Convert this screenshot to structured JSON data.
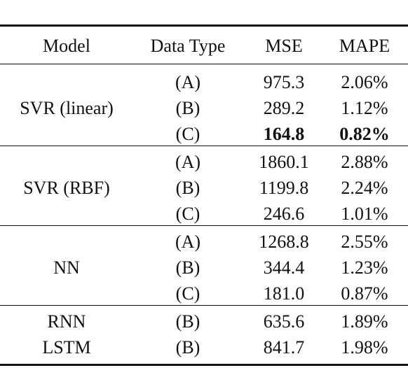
{
  "table": {
    "header": [
      "Model",
      "Data Type",
      "MSE",
      "MAPE"
    ],
    "groups": [
      {
        "model": "SVR (linear)",
        "rows": [
          [
            "(A)",
            "975.3",
            "2.06%"
          ],
          [
            "(B)",
            "289.2",
            "1.12%"
          ],
          [
            "(C)",
            "164.8",
            "0.82%"
          ]
        ]
      },
      {
        "model": "SVR (RBF)",
        "rows": [
          [
            "(A)",
            "1860.1",
            "2.88%"
          ],
          [
            "(B)",
            "1199.8",
            "2.24%"
          ],
          [
            "(C)",
            "246.6",
            "1.01%"
          ]
        ]
      },
      {
        "model": "NN",
        "rows": [
          [
            "(A)",
            "1268.8",
            "2.55%"
          ],
          [
            "(B)",
            "344.4",
            "1.23%"
          ],
          [
            "(C)",
            "181.0",
            "0.87%"
          ]
        ]
      },
      {
        "model": "RNN",
        "rows": [
          [
            "(B)",
            "635.6",
            "1.89%"
          ]
        ]
      },
      {
        "model": "LSTM",
        "rows": [
          [
            "(B)",
            "841.7",
            "1.98%"
          ]
        ]
      }
    ]
  }
}
